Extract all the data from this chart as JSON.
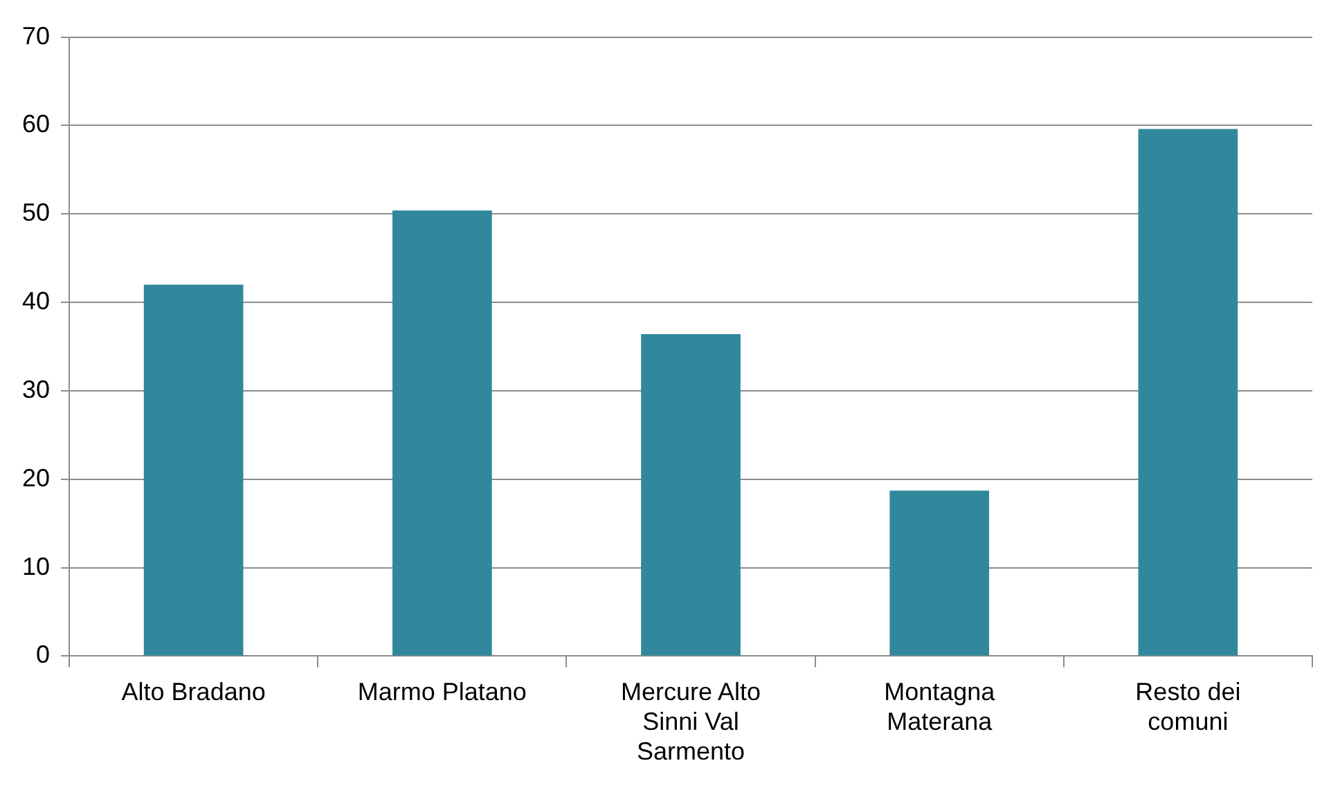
{
  "chart_data": {
    "type": "bar",
    "categories": [
      "Alto Bradano",
      "Marmo Platano",
      "Mercure Alto Sinni Val Sarmento",
      "Montagna Materana",
      "Resto dei comuni"
    ],
    "values": [
      42,
      50.4,
      36.4,
      18.7,
      59.6
    ],
    "color": "#31879c",
    "ylim": [
      0,
      70
    ],
    "yticks": [
      0,
      10,
      20,
      30,
      40,
      50,
      60,
      70
    ],
    "grid": "y",
    "legend": false
  }
}
